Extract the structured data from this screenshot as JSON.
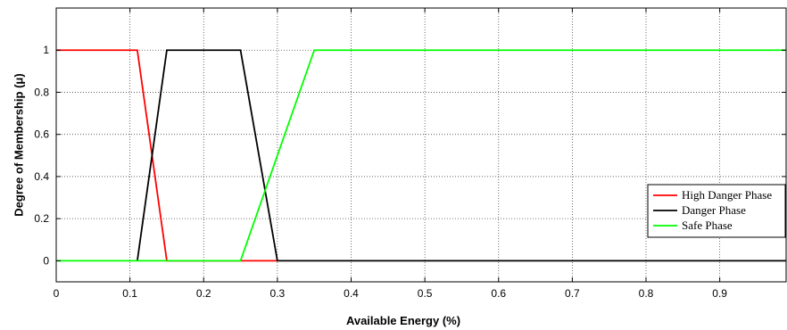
{
  "chart_data": {
    "type": "line",
    "xlabel": "Available Energy (%)",
    "ylabel": "Degree of Membership (μ)",
    "xlim": [
      0,
      0.99
    ],
    "ylim": [
      -0.1,
      1.2
    ],
    "x_ticks": [
      0,
      0.1,
      0.2,
      0.3,
      0.4,
      0.5,
      0.6,
      0.7,
      0.8,
      0.9
    ],
    "x_tick_labels": [
      "0",
      "0.1",
      "0.2",
      "0.3",
      "0.4",
      "0.5",
      "0.6",
      "0.7",
      "0.8",
      "0.9"
    ],
    "y_ticks": [
      0,
      0.2,
      0.4,
      0.6,
      0.8,
      1
    ],
    "y_tick_labels": [
      "0",
      "0.2",
      "0.4",
      "0.6",
      "0.8",
      "1"
    ],
    "grid": true,
    "legend_position": "right",
    "series": [
      {
        "name": "High Danger Phase",
        "color": "#ff0000",
        "x": [
          0,
          0.11,
          0.15,
          0.3
        ],
        "y": [
          1,
          1,
          0,
          0
        ]
      },
      {
        "name": "Danger Phase",
        "color": "#000000",
        "x": [
          0.11,
          0.15,
          0.25,
          0.3,
          0.99
        ],
        "y": [
          0,
          1,
          1,
          0,
          0
        ]
      },
      {
        "name": "Safe Phase",
        "color": "#00ff00",
        "x": [
          0,
          0.25,
          0.35,
          0.99
        ],
        "y": [
          0,
          0,
          1,
          1
        ]
      }
    ]
  }
}
